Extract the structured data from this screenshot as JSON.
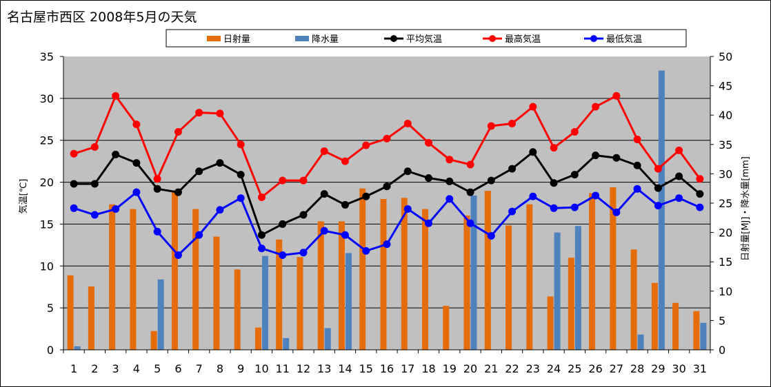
{
  "chart_data": {
    "type": "bar+line",
    "title": "名古屋市西区  2008年5月の天気",
    "categories": [
      "1",
      "2",
      "3",
      "4",
      "5",
      "6",
      "7",
      "8",
      "9",
      "10",
      "11",
      "12",
      "13",
      "14",
      "15",
      "16",
      "17",
      "18",
      "19",
      "20",
      "21",
      "22",
      "23",
      "24",
      "25",
      "26",
      "27",
      "28",
      "29",
      "30",
      "31"
    ],
    "ylabel_left": "気温[℃]",
    "ylabel_right": "日射量[MJ]・降水量[mm]",
    "ylim_left": [
      0,
      35
    ],
    "ylim_right": [
      0,
      50
    ],
    "yticks_left": [
      "0",
      "5",
      "10",
      "15",
      "20",
      "25",
      "30",
      "35"
    ],
    "yticks_right": [
      "0",
      "5",
      "10",
      "15",
      "20",
      "25",
      "30",
      "35",
      "40",
      "45",
      "50"
    ],
    "grid": true,
    "legend_position": "top",
    "plot_background": "#c0c0c0",
    "series": [
      {
        "name": "日射量",
        "kind": "bar",
        "axis": "right",
        "color": "#e46c0a",
        "values": [
          12.7,
          10.8,
          24.8,
          24.0,
          3.2,
          27.0,
          24.0,
          19.3,
          13.7,
          3.8,
          18.8,
          15.8,
          21.9,
          21.9,
          27.5,
          25.7,
          25.9,
          24.0,
          7.5,
          22.9,
          27.1,
          21.2,
          24.8,
          9.1,
          15.7,
          26.7,
          27.7,
          17.1,
          11.4,
          8.0,
          6.6
        ]
      },
      {
        "name": "降水量",
        "kind": "bar",
        "axis": "right",
        "color": "#4f81bd",
        "values": [
          0.6,
          0,
          0,
          0,
          12.0,
          0,
          0,
          0,
          0,
          16.0,
          2.0,
          0,
          3.7,
          16.5,
          0,
          0,
          0,
          0,
          0,
          26.3,
          0,
          0,
          0,
          20.0,
          21.1,
          0,
          0,
          2.6,
          47.6,
          0,
          4.6
        ]
      },
      {
        "name": "平均気温",
        "kind": "line",
        "axis": "left",
        "color": "#000000",
        "values": [
          19.8,
          19.8,
          23.3,
          22.3,
          19.2,
          18.8,
          21.3,
          22.3,
          20.9,
          13.7,
          15.0,
          16.1,
          18.6,
          17.3,
          18.3,
          19.5,
          21.3,
          20.5,
          20.1,
          18.8,
          20.2,
          21.6,
          23.6,
          19.9,
          20.9,
          23.2,
          22.9,
          22.0,
          19.3,
          20.7,
          18.6
        ]
      },
      {
        "name": "最高気温",
        "kind": "line",
        "axis": "left",
        "color": "#ff0000",
        "values": [
          23.4,
          24.2,
          30.3,
          26.9,
          20.4,
          26.0,
          28.3,
          28.2,
          24.5,
          18.2,
          20.2,
          20.2,
          23.7,
          22.5,
          24.4,
          25.2,
          27.0,
          24.7,
          22.7,
          22.1,
          26.7,
          27.0,
          29.0,
          24.1,
          26.0,
          29.0,
          30.3,
          25.1,
          21.6,
          23.8,
          20.4
        ]
      },
      {
        "name": "最低気温",
        "kind": "line",
        "axis": "left",
        "color": "#0000ff",
        "values": [
          16.9,
          16.1,
          16.8,
          18.8,
          14.1,
          11.3,
          13.7,
          16.7,
          18.1,
          12.1,
          11.3,
          11.6,
          14.2,
          13.7,
          11.8,
          12.6,
          16.8,
          15.1,
          18.0,
          15.1,
          13.6,
          16.5,
          18.3,
          16.9,
          17.0,
          18.4,
          16.4,
          19.2,
          17.2,
          18.1,
          17.0
        ]
      }
    ]
  }
}
